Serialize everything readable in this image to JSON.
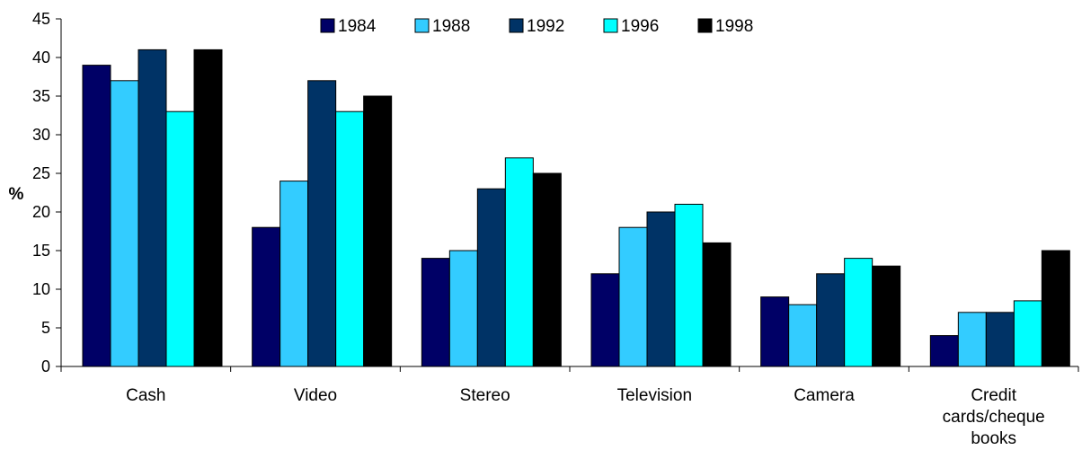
{
  "chart_data": {
    "type": "bar",
    "title": "",
    "xlabel": "",
    "ylabel": "%",
    "ylim": [
      0,
      45
    ],
    "ytick_step": 5,
    "grid": false,
    "legend_position": "top",
    "categories": [
      "Cash",
      "Video",
      "Stereo",
      "Television",
      "Camera",
      "Credit cards/cheque books"
    ],
    "category_lines": [
      [
        "Cash"
      ],
      [
        "Video"
      ],
      [
        "Stereo"
      ],
      [
        "Television"
      ],
      [
        "Camera"
      ],
      [
        "Credit",
        "cards/cheque",
        "books"
      ]
    ],
    "series": [
      {
        "name": "1984",
        "color": "#000066",
        "values": [
          39,
          18,
          14,
          12,
          9,
          4
        ]
      },
      {
        "name": "1988",
        "color": "#33CCFF",
        "values": [
          37,
          24,
          15,
          18,
          8,
          7
        ]
      },
      {
        "name": "1992",
        "color": "#003366",
        "values": [
          41,
          37,
          23,
          20,
          12,
          7
        ]
      },
      {
        "name": "1996",
        "color": "#00FFFF",
        "values": [
          33,
          33,
          27,
          21,
          14,
          8.5
        ]
      },
      {
        "name": "1998",
        "color": "#000000",
        "values": [
          41,
          35,
          25,
          16,
          13,
          15
        ]
      }
    ]
  }
}
